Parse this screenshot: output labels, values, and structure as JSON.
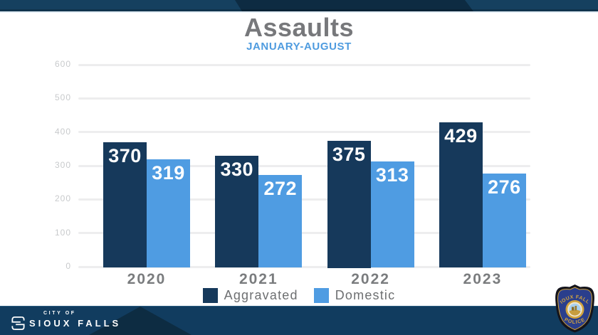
{
  "title": "Assaults",
  "subtitle": "JANUARY-AUGUST",
  "colors": {
    "band_top": "#15405f",
    "band_top_dark": "#0d2b42",
    "footer_band": "#113c5f",
    "footer_triangle": "#0d2c42",
    "aggravated": "#16395b",
    "domestic": "#4f9ce2",
    "title_text": "#77787b",
    "subtitle_text": "#4e9bdf",
    "badge_blue": "#2a3e8c",
    "badge_gold": "#d2a43e"
  },
  "chart_data": {
    "type": "bar",
    "title": "Assaults",
    "subtitle": "JANUARY-AUGUST",
    "categories": [
      "2020",
      "2021",
      "2022",
      "2023"
    ],
    "series": [
      {
        "name": "Aggravated",
        "color": "#16395b",
        "values": [
          370,
          330,
          375,
          429
        ]
      },
      {
        "name": "Domestic",
        "color": "#4f9ce2",
        "values": [
          319,
          272,
          313,
          276
        ]
      }
    ],
    "ylim": [
      0,
      600
    ],
    "yticks": [
      0,
      100,
      200,
      300,
      400,
      500,
      600
    ],
    "grid": true,
    "legend_position": "bottom",
    "data_labels": true
  },
  "footer": {
    "logo_small": "CITY OF",
    "logo_large": "SIOUX FALLS",
    "badge": {
      "top_text": "SIOUX FALLS",
      "bottom_text": "POLICE"
    }
  }
}
